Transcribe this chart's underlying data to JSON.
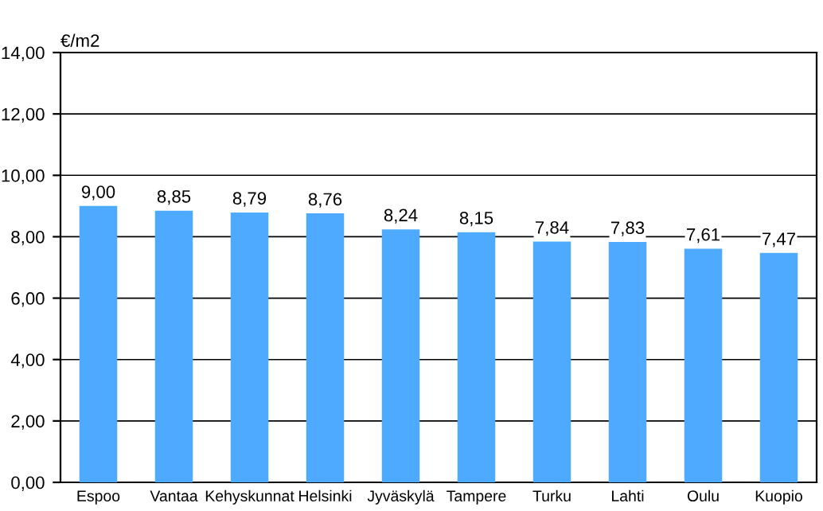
{
  "chart_data": {
    "type": "bar",
    "ylabel": "€/m2",
    "categories": [
      "Espoo",
      "Vantaa",
      "Kehyskunnat",
      "Helsinki",
      "Jyväskylä",
      "Tampere",
      "Turku",
      "Lahti",
      "Oulu",
      "Kuopio"
    ],
    "values": [
      9.0,
      8.85,
      8.79,
      8.76,
      8.24,
      8.15,
      7.84,
      7.83,
      7.61,
      7.47
    ],
    "value_labels": [
      "9,00",
      "8,85",
      "8,79",
      "8,76",
      "8,24",
      "8,15",
      "7,84",
      "7,83",
      "7,61",
      "7,47"
    ],
    "color": "#4daaff",
    "ylim": [
      0,
      14
    ],
    "yticks": [
      {
        "value": 0,
        "label": "0,00"
      },
      {
        "value": 2,
        "label": "2,00"
      },
      {
        "value": 4,
        "label": "4,00"
      },
      {
        "value": 6,
        "label": "6,00"
      },
      {
        "value": 8,
        "label": "8,00"
      },
      {
        "value": 10,
        "label": "10,00"
      },
      {
        "value": 12,
        "label": "12,00"
      },
      {
        "value": 14,
        "label": "14,00"
      }
    ],
    "grid": "y"
  }
}
